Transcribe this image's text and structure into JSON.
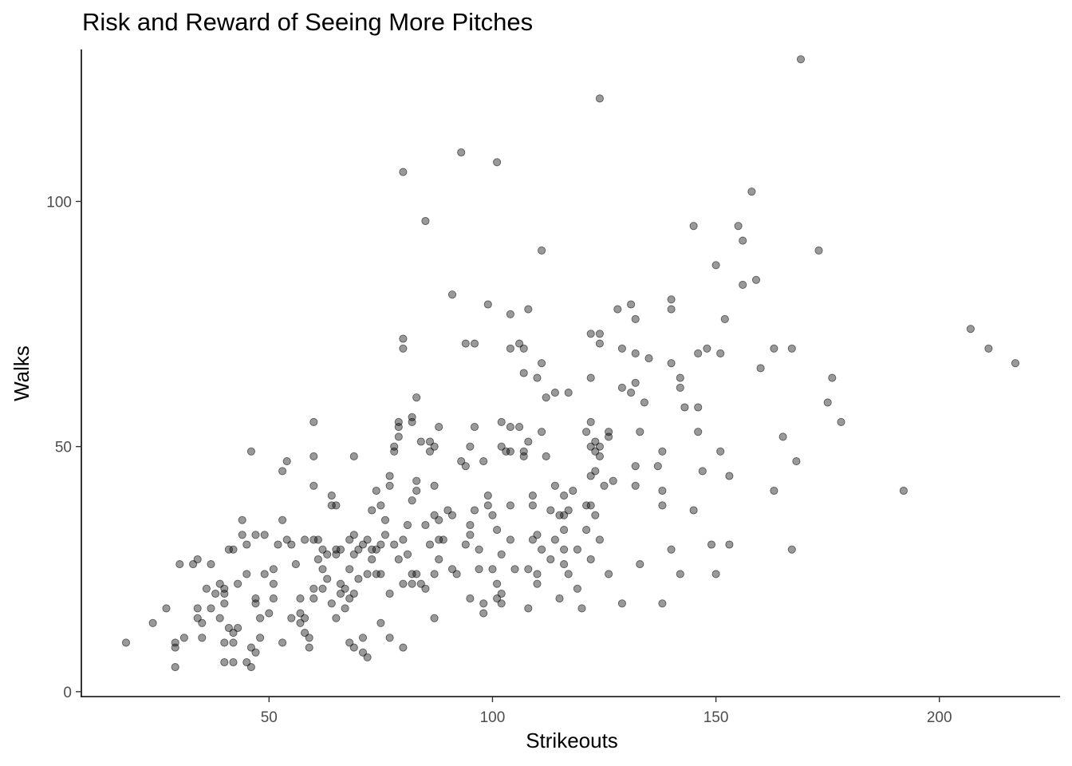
{
  "chart_data": {
    "type": "scatter",
    "title": "Risk and Reward of Seeing More Pitches",
    "xlabel": "Strikeouts",
    "ylabel": "Walks",
    "xlim": [
      8,
      227
    ],
    "ylim": [
      -1,
      131
    ],
    "x_ticks": [
      50,
      100,
      150,
      200
    ],
    "y_ticks": [
      0,
      50,
      100
    ],
    "grid": false,
    "marker_color": "#000000",
    "marker_alpha": 0.4,
    "points": [
      [
        18,
        10
      ],
      [
        24,
        14
      ],
      [
        27,
        17
      ],
      [
        29,
        5
      ],
      [
        29,
        9
      ],
      [
        29,
        10
      ],
      [
        30,
        26
      ],
      [
        31,
        11
      ],
      [
        33,
        26
      ],
      [
        34,
        27
      ],
      [
        34,
        17
      ],
      [
        34,
        15
      ],
      [
        35,
        14
      ],
      [
        35,
        11
      ],
      [
        36,
        21
      ],
      [
        37,
        17
      ],
      [
        37,
        26
      ],
      [
        38,
        20
      ],
      [
        39,
        22
      ],
      [
        39,
        15
      ],
      [
        40,
        21
      ],
      [
        40,
        20
      ],
      [
        40,
        10
      ],
      [
        40,
        6
      ],
      [
        40,
        18
      ],
      [
        41,
        29
      ],
      [
        41,
        13
      ],
      [
        42,
        12
      ],
      [
        42,
        10
      ],
      [
        42,
        6
      ],
      [
        42,
        29
      ],
      [
        43,
        13
      ],
      [
        43,
        22
      ],
      [
        44,
        35
      ],
      [
        44,
        32
      ],
      [
        45,
        30
      ],
      [
        45,
        24
      ],
      [
        45,
        6
      ],
      [
        46,
        5
      ],
      [
        46,
        9
      ],
      [
        46,
        49
      ],
      [
        47,
        19
      ],
      [
        47,
        18
      ],
      [
        47,
        32
      ],
      [
        47,
        8
      ],
      [
        48,
        15
      ],
      [
        48,
        11
      ],
      [
        49,
        32
      ],
      [
        49,
        24
      ],
      [
        50,
        16
      ],
      [
        51,
        25
      ],
      [
        51,
        22
      ],
      [
        51,
        19
      ],
      [
        52,
        30
      ],
      [
        53,
        45
      ],
      [
        53,
        35
      ],
      [
        53,
        10
      ],
      [
        54,
        47
      ],
      [
        54,
        31
      ],
      [
        55,
        30
      ],
      [
        55,
        15
      ],
      [
        56,
        26
      ],
      [
        57,
        19
      ],
      [
        57,
        16
      ],
      [
        57,
        14
      ],
      [
        58,
        31
      ],
      [
        58,
        12
      ],
      [
        58,
        15
      ],
      [
        59,
        9
      ],
      [
        59,
        11
      ],
      [
        60,
        55
      ],
      [
        60,
        48
      ],
      [
        60,
        42
      ],
      [
        60,
        31
      ],
      [
        60,
        21
      ],
      [
        60,
        19
      ],
      [
        61,
        31
      ],
      [
        61,
        27
      ],
      [
        62,
        25
      ],
      [
        62,
        21
      ],
      [
        62,
        29
      ],
      [
        63,
        23
      ],
      [
        63,
        28
      ],
      [
        64,
        40
      ],
      [
        64,
        38
      ],
      [
        64,
        18
      ],
      [
        65,
        38
      ],
      [
        65,
        29
      ],
      [
        65,
        28
      ],
      [
        65,
        15
      ],
      [
        66,
        22
      ],
      [
        66,
        20
      ],
      [
        66,
        29
      ],
      [
        67,
        21
      ],
      [
        67,
        17
      ],
      [
        68,
        31
      ],
      [
        68,
        25
      ],
      [
        68,
        19
      ],
      [
        68,
        10
      ],
      [
        69,
        48
      ],
      [
        69,
        32
      ],
      [
        69,
        28
      ],
      [
        69,
        20
      ],
      [
        69,
        9
      ],
      [
        70,
        23
      ],
      [
        70,
        29
      ],
      [
        71,
        30
      ],
      [
        71,
        11
      ],
      [
        71,
        8
      ],
      [
        72,
        31
      ],
      [
        72,
        24
      ],
      [
        72,
        7
      ],
      [
        73,
        37
      ],
      [
        73,
        27
      ],
      [
        73,
        29
      ],
      [
        74,
        24
      ],
      [
        74,
        29
      ],
      [
        74,
        41
      ],
      [
        75,
        38
      ],
      [
        75,
        24
      ],
      [
        75,
        30
      ],
      [
        75,
        14
      ],
      [
        76,
        35
      ],
      [
        76,
        32
      ],
      [
        77,
        44
      ],
      [
        77,
        42
      ],
      [
        77,
        20
      ],
      [
        77,
        11
      ],
      [
        78,
        49
      ],
      [
        78,
        30
      ],
      [
        78,
        50
      ],
      [
        79,
        55
      ],
      [
        79,
        54
      ],
      [
        79,
        52
      ],
      [
        79,
        27
      ],
      [
        80,
        106
      ],
      [
        80,
        72
      ],
      [
        80,
        70
      ],
      [
        80,
        31
      ],
      [
        80,
        22
      ],
      [
        80,
        9
      ],
      [
        81,
        34
      ],
      [
        81,
        28
      ],
      [
        82,
        56
      ],
      [
        82,
        55
      ],
      [
        82,
        39
      ],
      [
        82,
        24
      ],
      [
        82,
        22
      ],
      [
        83,
        60
      ],
      [
        83,
        43
      ],
      [
        83,
        41
      ],
      [
        83,
        24
      ],
      [
        84,
        51
      ],
      [
        84,
        22
      ],
      [
        85,
        96
      ],
      [
        85,
        34
      ],
      [
        85,
        21
      ],
      [
        86,
        51
      ],
      [
        86,
        49
      ],
      [
        86,
        30
      ],
      [
        87,
        50
      ],
      [
        87,
        42
      ],
      [
        87,
        36
      ],
      [
        87,
        24
      ],
      [
        87,
        15
      ],
      [
        88,
        54
      ],
      [
        88,
        35
      ],
      [
        88,
        31
      ],
      [
        88,
        27
      ],
      [
        89,
        31
      ],
      [
        90,
        37
      ],
      [
        91,
        81
      ],
      [
        91,
        36
      ],
      [
        91,
        25
      ],
      [
        92,
        24
      ],
      [
        93,
        110
      ],
      [
        93,
        47
      ],
      [
        94,
        71
      ],
      [
        94,
        46
      ],
      [
        94,
        30
      ],
      [
        95,
        50
      ],
      [
        95,
        34
      ],
      [
        95,
        32
      ],
      [
        95,
        19
      ],
      [
        96,
        71
      ],
      [
        96,
        54
      ],
      [
        96,
        37
      ],
      [
        97,
        29
      ],
      [
        97,
        25
      ],
      [
        98,
        47
      ],
      [
        98,
        18
      ],
      [
        98,
        16
      ],
      [
        99,
        79
      ],
      [
        99,
        40
      ],
      [
        99,
        38
      ],
      [
        100,
        25
      ],
      [
        100,
        36
      ],
      [
        101,
        108
      ],
      [
        101,
        33
      ],
      [
        101,
        22
      ],
      [
        101,
        19
      ],
      [
        102,
        55
      ],
      [
        102,
        50
      ],
      [
        102,
        20
      ],
      [
        102,
        18
      ],
      [
        102,
        28
      ],
      [
        103,
        49
      ],
      [
        104,
        77
      ],
      [
        104,
        70
      ],
      [
        104,
        54
      ],
      [
        104,
        49
      ],
      [
        104,
        38
      ],
      [
        104,
        31
      ],
      [
        105,
        25
      ],
      [
        106,
        71
      ],
      [
        106,
        54
      ],
      [
        107,
        70
      ],
      [
        107,
        65
      ],
      [
        107,
        49
      ],
      [
        107,
        48
      ],
      [
        108,
        78
      ],
      [
        108,
        51
      ],
      [
        108,
        25
      ],
      [
        108,
        17
      ],
      [
        109,
        40
      ],
      [
        109,
        38
      ],
      [
        109,
        31
      ],
      [
        110,
        64
      ],
      [
        110,
        32
      ],
      [
        110,
        24
      ],
      [
        110,
        22
      ],
      [
        111,
        90
      ],
      [
        111,
        67
      ],
      [
        111,
        53
      ],
      [
        111,
        29
      ],
      [
        112,
        60
      ],
      [
        112,
        48
      ],
      [
        113,
        37
      ],
      [
        113,
        27
      ],
      [
        114,
        61
      ],
      [
        114,
        42
      ],
      [
        114,
        31
      ],
      [
        115,
        36
      ],
      [
        115,
        19
      ],
      [
        116,
        40
      ],
      [
        116,
        36
      ],
      [
        116,
        33
      ],
      [
        116,
        29
      ],
      [
        116,
        26
      ],
      [
        117,
        61
      ],
      [
        117,
        37
      ],
      [
        117,
        24
      ],
      [
        118,
        41
      ],
      [
        119,
        29
      ],
      [
        119,
        21
      ],
      [
        120,
        17
      ],
      [
        121,
        53
      ],
      [
        121,
        38
      ],
      [
        121,
        33
      ],
      [
        122,
        73
      ],
      [
        122,
        64
      ],
      [
        122,
        55
      ],
      [
        122,
        50
      ],
      [
        122,
        44
      ],
      [
        122,
        38
      ],
      [
        122,
        27
      ],
      [
        123,
        51
      ],
      [
        123,
        49
      ],
      [
        123,
        45
      ],
      [
        123,
        36
      ],
      [
        124,
        73
      ],
      [
        124,
        71
      ],
      [
        124,
        50
      ],
      [
        124,
        48
      ],
      [
        124,
        31
      ],
      [
        125,
        42
      ],
      [
        126,
        53
      ],
      [
        126,
        52
      ],
      [
        126,
        24
      ],
      [
        127,
        43
      ],
      [
        128,
        78
      ],
      [
        129,
        70
      ],
      [
        129,
        62
      ],
      [
        129,
        18
      ],
      [
        131,
        79
      ],
      [
        131,
        61
      ],
      [
        132,
        76
      ],
      [
        132,
        69
      ],
      [
        132,
        63
      ],
      [
        132,
        46
      ],
      [
        132,
        42
      ],
      [
        133,
        53
      ],
      [
        133,
        26
      ],
      [
        134,
        59
      ],
      [
        135,
        68
      ],
      [
        137,
        46
      ],
      [
        138,
        49
      ],
      [
        138,
        41
      ],
      [
        138,
        38
      ],
      [
        138,
        18
      ],
      [
        140,
        80
      ],
      [
        140,
        78
      ],
      [
        140,
        67
      ],
      [
        140,
        29
      ],
      [
        142,
        64
      ],
      [
        142,
        62
      ],
      [
        142,
        24
      ],
      [
        143,
        58
      ],
      [
        145,
        95
      ],
      [
        145,
        37
      ],
      [
        146,
        69
      ],
      [
        146,
        58
      ],
      [
        146,
        53
      ],
      [
        147,
        45
      ],
      [
        148,
        70
      ],
      [
        149,
        30
      ],
      [
        150,
        87
      ],
      [
        150,
        24
      ],
      [
        151,
        69
      ],
      [
        151,
        49
      ],
      [
        152,
        76
      ],
      [
        153,
        44
      ],
      [
        153,
        30
      ],
      [
        155,
        95
      ],
      [
        156,
        92
      ],
      [
        156,
        83
      ],
      [
        158,
        102
      ],
      [
        159,
        84
      ],
      [
        160,
        66
      ],
      [
        163,
        70
      ],
      [
        163,
        41
      ],
      [
        165,
        52
      ],
      [
        167,
        70
      ],
      [
        167,
        29
      ],
      [
        168,
        47
      ],
      [
        169,
        129
      ],
      [
        173,
        90
      ],
      [
        175,
        59
      ],
      [
        176,
        64
      ],
      [
        178,
        55
      ],
      [
        192,
        41
      ],
      [
        207,
        74
      ],
      [
        211,
        70
      ],
      [
        217,
        67
      ],
      [
        124,
        121
      ]
    ]
  }
}
